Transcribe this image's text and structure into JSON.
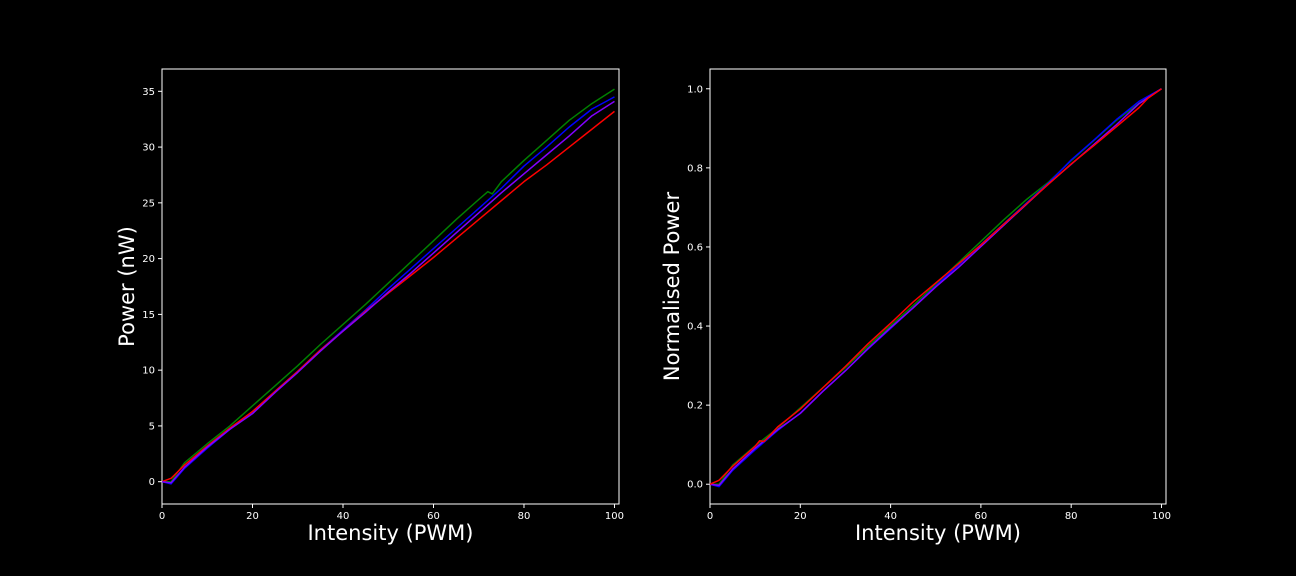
{
  "chart_data": [
    {
      "type": "line",
      "xlabel": "Intensity (PWM)",
      "ylabel": "Power (nW)",
      "xlim": [
        0,
        101
      ],
      "ylim": [
        -2,
        37
      ],
      "xticks": [
        0,
        20,
        40,
        60,
        80,
        100
      ],
      "yticks": [
        0,
        5,
        10,
        15,
        20,
        25,
        30,
        35
      ],
      "tick_decimals": 0,
      "grid": false,
      "legend": "none",
      "series": [
        {
          "color": "#008000",
          "x": [
            0,
            2,
            5,
            10,
            15,
            20,
            25,
            30,
            35,
            40,
            45,
            50,
            55,
            60,
            65,
            70,
            72,
            73,
            75,
            80,
            85,
            90,
            95,
            100
          ],
          "y": [
            0,
            0,
            1.7,
            3.4,
            5.0,
            6.8,
            8.6,
            10.4,
            12.3,
            14.1,
            15.9,
            17.8,
            19.7,
            21.6,
            23.5,
            25.3,
            26.0,
            25.8,
            26.9,
            28.8,
            30.6,
            32.4,
            33.9,
            35.2
          ]
        },
        {
          "color": "#0000ff",
          "x": [
            0,
            2,
            5,
            10,
            15,
            20,
            25,
            30,
            35,
            40,
            45,
            50,
            55,
            60,
            65,
            70,
            75,
            80,
            85,
            90,
            95,
            100
          ],
          "y": [
            0,
            -0.2,
            1.2,
            3.0,
            4.7,
            6.2,
            8.1,
            9.9,
            11.8,
            13.6,
            15.4,
            17.3,
            19.1,
            20.9,
            22.7,
            24.5,
            26.3,
            28.3,
            30.0,
            31.8,
            33.4,
            34.5
          ]
        },
        {
          "color": "#ff0000",
          "x": [
            0,
            2,
            5,
            10,
            15,
            20,
            25,
            30,
            35,
            40,
            45,
            50,
            55,
            60,
            65,
            70,
            75,
            80,
            85,
            90,
            95,
            100
          ],
          "y": [
            0,
            0.3,
            1.5,
            3.2,
            4.8,
            6.3,
            8.1,
            9.9,
            11.8,
            13.5,
            15.3,
            16.9,
            18.5,
            20.1,
            21.8,
            23.5,
            25.2,
            26.9,
            28.4,
            30.0,
            31.6,
            33.2
          ]
        },
        {
          "color": "#8000ff",
          "x": [
            0,
            2,
            5,
            10,
            15,
            20,
            25,
            30,
            35,
            40,
            45,
            50,
            55,
            60,
            65,
            70,
            75,
            80,
            85,
            90,
            95,
            100
          ],
          "y": [
            0,
            -0.1,
            1.3,
            3.1,
            4.7,
            6.1,
            8.0,
            9.8,
            11.7,
            13.5,
            15.2,
            17.0,
            18.7,
            20.5,
            22.3,
            24.1,
            25.9,
            27.6,
            29.3,
            31.0,
            32.8,
            34.1
          ]
        }
      ]
    },
    {
      "type": "line",
      "xlabel": "Intensity (PWM)",
      "ylabel": "Normalised Power",
      "xlim": [
        0,
        101
      ],
      "ylim": [
        -0.05,
        1.05
      ],
      "xticks": [
        0,
        20,
        40,
        60,
        80,
        100
      ],
      "yticks": [
        0.0,
        0.2,
        0.4,
        0.6,
        0.8,
        1.0
      ],
      "tick_decimals": 1,
      "grid": false,
      "legend": "none",
      "series": [
        {
          "color": "#008000",
          "x": [
            0,
            2,
            5,
            10,
            15,
            20,
            25,
            30,
            35,
            40,
            45,
            50,
            55,
            60,
            65,
            70,
            75,
            80,
            85,
            90,
            95,
            100
          ],
          "y": [
            0,
            0,
            0.048,
            0.097,
            0.142,
            0.193,
            0.244,
            0.295,
            0.349,
            0.401,
            0.452,
            0.506,
            0.56,
            0.614,
            0.668,
            0.719,
            0.764,
            0.818,
            0.869,
            0.92,
            0.963,
            1.0
          ]
        },
        {
          "color": "#0000ff",
          "x": [
            0,
            2,
            5,
            10,
            15,
            20,
            25,
            30,
            35,
            40,
            45,
            50,
            55,
            60,
            65,
            70,
            75,
            80,
            85,
            90,
            95,
            100
          ],
          "y": [
            0,
            -0.006,
            0.035,
            0.087,
            0.136,
            0.18,
            0.235,
            0.287,
            0.342,
            0.394,
            0.446,
            0.501,
            0.554,
            0.606,
            0.658,
            0.71,
            0.762,
            0.82,
            0.87,
            0.922,
            0.968,
            1.0
          ]
        },
        {
          "color": "#8000ff",
          "x": [
            0,
            2,
            5,
            10,
            15,
            20,
            25,
            30,
            35,
            40,
            45,
            50,
            55,
            60,
            65,
            70,
            75,
            80,
            85,
            90,
            95,
            100
          ],
          "y": [
            0,
            -0.003,
            0.038,
            0.091,
            0.138,
            0.179,
            0.235,
            0.287,
            0.343,
            0.396,
            0.446,
            0.499,
            0.548,
            0.601,
            0.654,
            0.707,
            0.76,
            0.809,
            0.859,
            0.909,
            0.962,
            1.0
          ]
        },
        {
          "color": "#ff0000",
          "x": [
            0,
            2,
            5,
            10,
            11,
            12,
            15,
            20,
            25,
            30,
            35,
            40,
            45,
            50,
            55,
            60,
            65,
            70,
            75,
            80,
            85,
            90,
            95,
            97,
            100
          ],
          "y": [
            0,
            0.01,
            0.045,
            0.096,
            0.11,
            0.108,
            0.145,
            0.19,
            0.244,
            0.298,
            0.355,
            0.407,
            0.461,
            0.509,
            0.557,
            0.605,
            0.657,
            0.708,
            0.759,
            0.81,
            0.856,
            0.904,
            0.952,
            0.976,
            1.0
          ]
        }
      ]
    }
  ]
}
